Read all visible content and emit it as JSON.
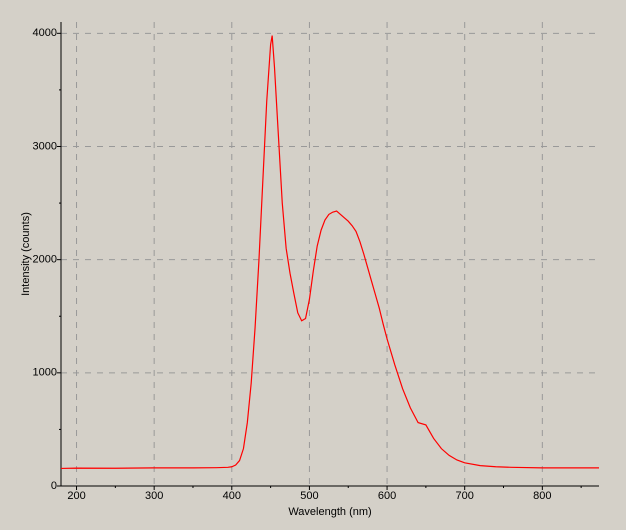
{
  "chart_data": {
    "type": "line",
    "xlabel": "Wavelength (nm)",
    "ylabel": "Intensity (counts)",
    "x": [
      180,
      200,
      250,
      300,
      350,
      380,
      395,
      400,
      405,
      410,
      415,
      420,
      425,
      430,
      435,
      440,
      445,
      450,
      452,
      455,
      460,
      465,
      470,
      475,
      480,
      485,
      490,
      495,
      500,
      505,
      510,
      515,
      520,
      525,
      530,
      535,
      540,
      545,
      550,
      555,
      560,
      565,
      570,
      575,
      580,
      585,
      590,
      595,
      600,
      610,
      620,
      630,
      640,
      650,
      660,
      670,
      680,
      690,
      700,
      720,
      740,
      760,
      800,
      873
    ],
    "series": [
      {
        "name": "Intensity",
        "color": "#ff0000",
        "values": [
          155,
          158,
          157,
          160,
          160,
          162,
          165,
          170,
          185,
          225,
          330,
          560,
          910,
          1400,
          2000,
          2700,
          3400,
          3900,
          3980,
          3700,
          3100,
          2500,
          2100,
          1880,
          1700,
          1530,
          1460,
          1480,
          1650,
          1900,
          2120,
          2260,
          2350,
          2400,
          2420,
          2430,
          2400,
          2370,
          2340,
          2300,
          2250,
          2160,
          2050,
          1930,
          1810,
          1690,
          1570,
          1430,
          1300,
          1070,
          860,
          690,
          560,
          540,
          420,
          330,
          270,
          230,
          205,
          180,
          170,
          165,
          160,
          160
        ]
      }
    ],
    "xlim": [
      180,
      873
    ],
    "ylim": [
      0,
      4100
    ],
    "xticks": [
      200,
      300,
      400,
      500,
      600,
      700,
      800
    ],
    "yticks": [
      0,
      1000,
      2000,
      3000,
      4000
    ],
    "xminorticks": [
      250,
      350,
      450,
      550,
      650,
      750,
      850
    ],
    "yminorticks": [
      500,
      1500,
      2500,
      3500
    ],
    "grid": true
  }
}
